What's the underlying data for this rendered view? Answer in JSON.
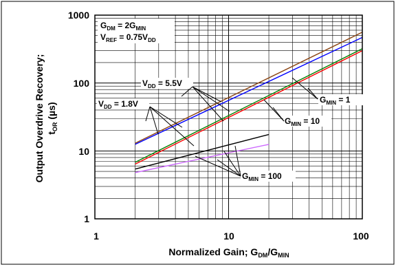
{
  "chart_data": {
    "type": "line",
    "xscale": "log",
    "yscale": "log",
    "xlim": [
      1,
      100
    ],
    "ylim": [
      1,
      1000
    ],
    "grid": true,
    "x_ticks": [
      "1",
      "10",
      "100"
    ],
    "y_ticks": [
      "1",
      "10",
      "100",
      "1000"
    ],
    "xlabel": {
      "main": "Normalized Gain; G",
      "s1": "DM",
      "mid": "/G",
      "s2": "MIN"
    },
    "ylabel": {
      "line1": "Output Overdrive Recovery;",
      "l2a": "t",
      "l2sub": "OR",
      "l2b": " (µs)"
    },
    "conditions": [
      {
        "a": "G",
        "as": "DM",
        "b": " = 2G",
        "bs": "MIN"
      },
      {
        "a": "V",
        "as": "REF",
        "b": " = 0.75V",
        "bs": "DD"
      }
    ],
    "annotations": {
      "vdd55": {
        "a": "V",
        "as": "DD",
        "b": " = 5.5V"
      },
      "vdd18": {
        "a": "V",
        "as": "DD",
        "b": " = 1.8V"
      },
      "gmin1": {
        "a": "G",
        "as": "MIN",
        "b": " = 1"
      },
      "gmin10": {
        "a": "G",
        "as": "MIN",
        "b": " = 10"
      },
      "gmin100": {
        "a": "G",
        "as": "MIN",
        "b": " = 100"
      }
    },
    "series": [
      {
        "color": "#8B4513",
        "x": [
          2,
          100
        ],
        "y": [
          13,
          560
        ]
      },
      {
        "color": "#0000FF",
        "x": [
          2,
          100
        ],
        "y": [
          12.5,
          470
        ]
      },
      {
        "color": "#008000",
        "x": [
          2,
          100
        ],
        "y": [
          6.8,
          320
        ]
      },
      {
        "color": "#FF0000",
        "x": [
          2,
          100
        ],
        "y": [
          6.4,
          300
        ]
      },
      {
        "color": "#000000",
        "x": [
          2,
          20
        ],
        "y": [
          5.4,
          17.5
        ]
      },
      {
        "color": "#CC66FF",
        "x": [
          2,
          20
        ],
        "y": [
          4.8,
          12.5
        ]
      }
    ]
  }
}
